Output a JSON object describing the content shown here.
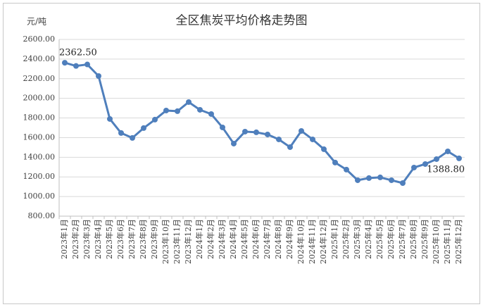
{
  "chart_data": {
    "type": "line",
    "title": "全区焦炭平均价格走势图",
    "y_label": "元/吨",
    "categories": [
      "2023年1月",
      "2023年2月",
      "2023年3月",
      "2023年4月",
      "2023年5月",
      "2023年6月",
      "2023年7月",
      "2023年8月",
      "2023年9月",
      "2023年10月",
      "2023年11月",
      "2023年12月",
      "2024年1月",
      "2024年2月",
      "2024年3月",
      "2024年4月",
      "2024年5月",
      "2024年6月",
      "2024年7月",
      "2024年8月",
      "2024年9月",
      "2024年10月",
      "2024年11月",
      "2024年12月",
      "2025年1月",
      "2025年2月",
      "2025年3月",
      "2025年4月",
      "2025年5月",
      "2025年6月",
      "2025年7月",
      "2025年8月",
      "2025年9月",
      "2025年10月",
      "2025年11月",
      "2025年12月"
    ],
    "values": [
      2362.5,
      2330,
      2345,
      2227,
      1790,
      1647,
      1597,
      1697,
      1783,
      1876,
      1869,
      1962,
      1883,
      1840,
      1704,
      1539,
      1661,
      1654,
      1632,
      1582,
      1503,
      1668,
      1582,
      1482,
      1346,
      1274,
      1166,
      1188,
      1195,
      1166,
      1137,
      1295,
      1331,
      1381,
      1460,
      1388.8
    ],
    "value_labels": [
      "2362.50",
      null,
      null,
      null,
      null,
      null,
      null,
      null,
      null,
      null,
      null,
      null,
      null,
      null,
      null,
      null,
      null,
      null,
      null,
      null,
      null,
      null,
      null,
      null,
      null,
      null,
      null,
      null,
      null,
      null,
      null,
      null,
      null,
      null,
      null,
      "1388.80"
    ],
    "color": "#4f7fbc",
    "ylim": [
      800,
      2600
    ],
    "yticks": [
      {
        "value": 800,
        "label": "800.00"
      },
      {
        "value": 1000,
        "label": "1000.00"
      },
      {
        "value": 1200,
        "label": "1200.00"
      },
      {
        "value": 1400,
        "label": "1400.00"
      },
      {
        "value": 1600,
        "label": "1600.00"
      },
      {
        "value": 1800,
        "label": "1800.00"
      },
      {
        "value": 2000,
        "label": "2000.00"
      },
      {
        "value": 2200,
        "label": "2200.00"
      },
      {
        "value": 2400,
        "label": "2400.00"
      },
      {
        "value": 2600,
        "label": "2600.00"
      }
    ],
    "grid": true
  }
}
